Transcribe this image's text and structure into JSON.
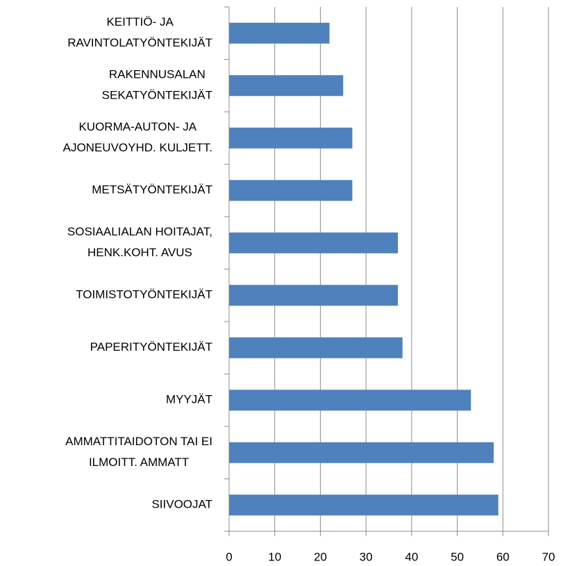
{
  "chart_data": {
    "type": "barh",
    "categories": [
      "KEITTIÖ- JA\nRAVINTOLATYÖNTEKIJÄT",
      "RAKENNUSALAN\nSEKATYÖNTEKIJÄT",
      "KUORMA-AUTON- JA\nAJONEUVOYHD. KULJETT.",
      "METSÄTYÖNTEKIJÄT",
      "SOSIAALIALAN HOITAJAT,\nHENK.KOHT. AVUS",
      "TOIMISTOTYÖNTEKIJÄT",
      "PAPERITYÖNTEKIJÄT",
      "MYYJÄT",
      "AMMATTITAIDOTON TAI EI\nILMOITT. AMMATT",
      "SIIVOOJAT"
    ],
    "values": [
      22,
      25,
      27,
      27,
      37,
      37,
      38,
      53,
      58,
      59
    ],
    "color": "#4f81bd",
    "xlim": [
      0,
      70
    ],
    "xticks": [
      0,
      10,
      20,
      30,
      40,
      50,
      60,
      70
    ],
    "grid": true
  }
}
